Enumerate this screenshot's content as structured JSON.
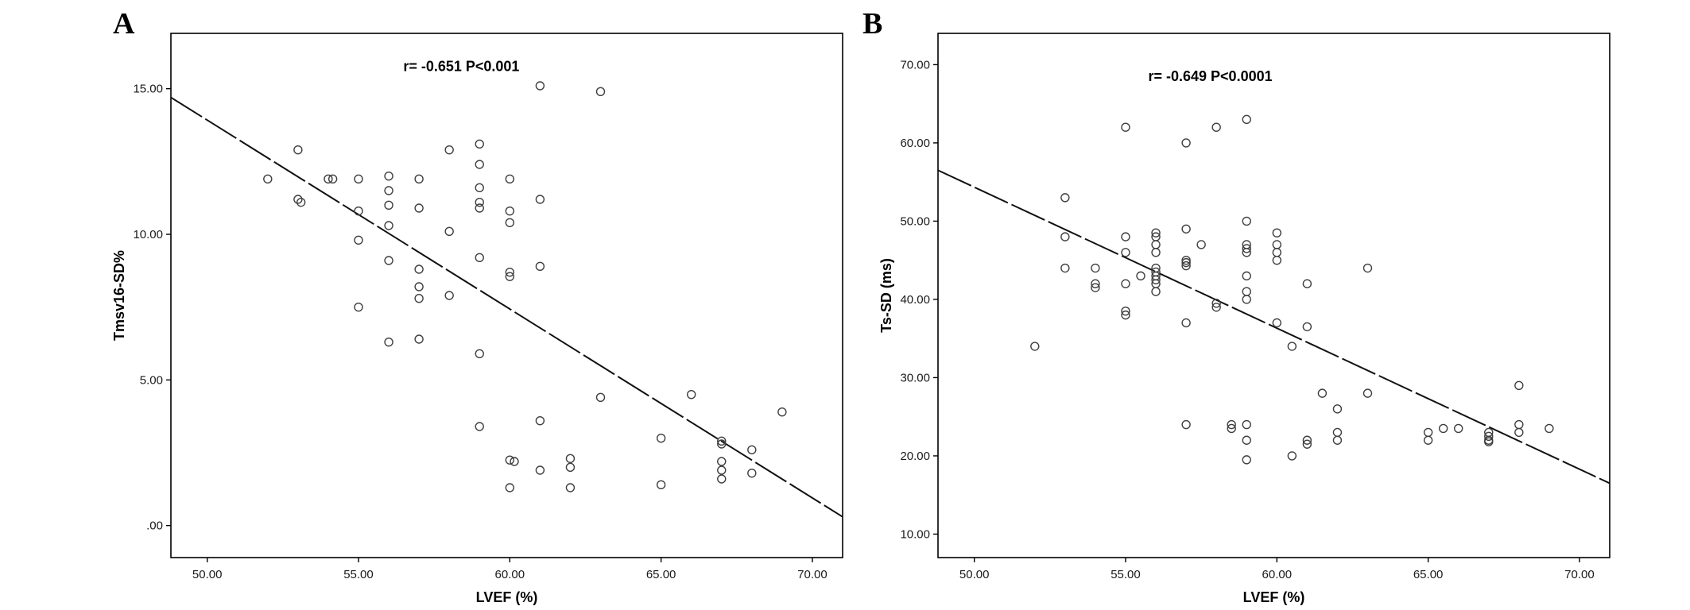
{
  "figure": {
    "panels": [
      {
        "letter": "A"
      },
      {
        "letter": "B"
      }
    ]
  },
  "chart_data": [
    {
      "type": "scatter",
      "panel": "A",
      "title": "",
      "xlabel": "LVEF (%)",
      "ylabel": "Tmsv16-SD%",
      "annotation": {
        "text": "r= -0.651  P<0.001",
        "x": 58.4,
        "y": 15.6
      },
      "xlim": [
        48.8,
        71.0
      ],
      "ylim": [
        -1.1,
        16.9
      ],
      "grid": false,
      "xticks": [
        {
          "v": 50,
          "label": "50.00"
        },
        {
          "v": 55,
          "label": "55.00"
        },
        {
          "v": 60,
          "label": "60.00"
        },
        {
          "v": 65,
          "label": "65.00"
        },
        {
          "v": 70,
          "label": "70.00"
        }
      ],
      "yticks": [
        {
          "v": 0,
          "label": ".00"
        },
        {
          "v": 5,
          "label": "5.00"
        },
        {
          "v": 10,
          "label": "10.00"
        },
        {
          "v": 15,
          "label": "15.00"
        }
      ],
      "fit_line": {
        "x1": 48.8,
        "y1": 14.7,
        "x2": 71.0,
        "y2": 0.3
      },
      "points": [
        [
          52,
          11.9
        ],
        [
          53,
          12.9
        ],
        [
          53,
          11.2
        ],
        [
          53.1,
          11.1
        ],
        [
          54,
          11.9
        ],
        [
          54.15,
          11.9
        ],
        [
          55,
          11.9
        ],
        [
          55,
          10.8
        ],
        [
          55,
          9.8
        ],
        [
          55,
          7.5
        ],
        [
          56,
          12.0
        ],
        [
          56,
          11.5
        ],
        [
          56,
          11.0
        ],
        [
          56,
          10.3
        ],
        [
          56,
          9.1
        ],
        [
          56,
          6.3
        ],
        [
          57,
          11.9
        ],
        [
          57,
          10.9
        ],
        [
          57,
          8.8
        ],
        [
          57,
          8.2
        ],
        [
          57,
          7.8
        ],
        [
          57,
          6.4
        ],
        [
          58,
          12.9
        ],
        [
          58,
          10.1
        ],
        [
          58,
          7.9
        ],
        [
          59,
          13.1
        ],
        [
          59,
          12.4
        ],
        [
          59,
          11.6
        ],
        [
          59,
          11.1
        ],
        [
          59,
          10.9
        ],
        [
          59,
          9.2
        ],
        [
          59,
          5.9
        ],
        [
          59,
          3.4
        ],
        [
          60,
          11.9
        ],
        [
          60,
          10.8
        ],
        [
          60,
          10.4
        ],
        [
          60,
          8.7
        ],
        [
          60,
          8.55
        ],
        [
          60,
          2.25
        ],
        [
          60.15,
          2.2
        ],
        [
          60,
          1.3
        ],
        [
          61,
          15.1
        ],
        [
          61,
          11.2
        ],
        [
          61,
          8.9
        ],
        [
          61,
          3.6
        ],
        [
          61,
          1.9
        ],
        [
          62,
          2.3
        ],
        [
          62,
          2.0
        ],
        [
          62,
          1.3
        ],
        [
          63,
          14.9
        ],
        [
          63,
          4.4
        ],
        [
          65,
          3.0
        ],
        [
          65,
          1.4
        ],
        [
          66,
          4.5
        ],
        [
          67,
          2.9
        ],
        [
          67,
          2.8
        ],
        [
          67,
          2.2
        ],
        [
          67,
          1.9
        ],
        [
          67,
          1.6
        ],
        [
          68,
          2.6
        ],
        [
          68,
          1.8
        ],
        [
          69,
          3.9
        ]
      ]
    },
    {
      "type": "scatter",
      "panel": "B",
      "title": "",
      "xlabel": "LVEF (%)",
      "ylabel": "Ts-SD  (ms)",
      "annotation": {
        "text": "r= -0.649  P<0.0001",
        "x": 57.8,
        "y": 67.9
      },
      "xlim": [
        48.8,
        71.0
      ],
      "ylim": [
        7,
        74
      ],
      "grid": false,
      "xticks": [
        {
          "v": 50,
          "label": "50.00"
        },
        {
          "v": 55,
          "label": "55.00"
        },
        {
          "v": 60,
          "label": "60.00"
        },
        {
          "v": 65,
          "label": "65.00"
        },
        {
          "v": 70,
          "label": "70.00"
        }
      ],
      "yticks": [
        {
          "v": 10,
          "label": "10.00"
        },
        {
          "v": 20,
          "label": "20.00"
        },
        {
          "v": 30,
          "label": "30.00"
        },
        {
          "v": 40,
          "label": "40.00"
        },
        {
          "v": 50,
          "label": "50.00"
        },
        {
          "v": 60,
          "label": "60.00"
        },
        {
          "v": 70,
          "label": "70.00"
        }
      ],
      "fit_line": {
        "x1": 48.8,
        "y1": 56.5,
        "x2": 71.0,
        "y2": 16.5
      },
      "points": [
        [
          52,
          34
        ],
        [
          53,
          53
        ],
        [
          53,
          48
        ],
        [
          53,
          44
        ],
        [
          54,
          44
        ],
        [
          54,
          42
        ],
        [
          54,
          41.5
        ],
        [
          55,
          62
        ],
        [
          55,
          48
        ],
        [
          55,
          46
        ],
        [
          55,
          42
        ],
        [
          55,
          38.5
        ],
        [
          55,
          38
        ],
        [
          55.5,
          43
        ],
        [
          56,
          48.5
        ],
        [
          56,
          48
        ],
        [
          56,
          47
        ],
        [
          56,
          46
        ],
        [
          56,
          44
        ],
        [
          56,
          43.5
        ],
        [
          56,
          43
        ],
        [
          56,
          42.5
        ],
        [
          56,
          42
        ],
        [
          56,
          41
        ],
        [
          57,
          60
        ],
        [
          57,
          49
        ],
        [
          57,
          45
        ],
        [
          57,
          44.7
        ],
        [
          57,
          44.3
        ],
        [
          57,
          37
        ],
        [
          57,
          24
        ],
        [
          57.5,
          47
        ],
        [
          58,
          62
        ],
        [
          58,
          39.5
        ],
        [
          58,
          39
        ],
        [
          58.5,
          24
        ],
        [
          58.5,
          23.5
        ],
        [
          59,
          63
        ],
        [
          59,
          50
        ],
        [
          59,
          47
        ],
        [
          59,
          46.5
        ],
        [
          59,
          46
        ],
        [
          59,
          43
        ],
        [
          59,
          41
        ],
        [
          59,
          40
        ],
        [
          59,
          24
        ],
        [
          59,
          22
        ],
        [
          59,
          19.5
        ],
        [
          60,
          48.5
        ],
        [
          60,
          47
        ],
        [
          60,
          46
        ],
        [
          60,
          45
        ],
        [
          60,
          37
        ],
        [
          60.5,
          34
        ],
        [
          60.5,
          20
        ],
        [
          61,
          42
        ],
        [
          61,
          36.5
        ],
        [
          61,
          22
        ],
        [
          61,
          21.5
        ],
        [
          61.5,
          28
        ],
        [
          62,
          26
        ],
        [
          62,
          23
        ],
        [
          62,
          22
        ],
        [
          63,
          44
        ],
        [
          63,
          28
        ],
        [
          65,
          23
        ],
        [
          65,
          22
        ],
        [
          65.5,
          23.5
        ],
        [
          66,
          23.5
        ],
        [
          67,
          23
        ],
        [
          67,
          22.5
        ],
        [
          67,
          22
        ],
        [
          67,
          21.8
        ],
        [
          68,
          29
        ],
        [
          68,
          24
        ],
        [
          68,
          23
        ],
        [
          69,
          23.5
        ]
      ]
    }
  ]
}
